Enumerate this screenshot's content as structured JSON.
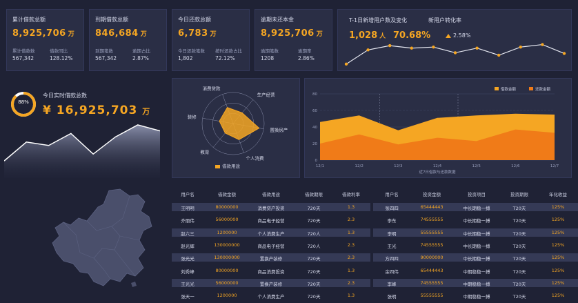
{
  "kpis": [
    {
      "title": "累计借款总额",
      "value": "8,925,706",
      "unit": "万",
      "sub": [
        {
          "label": "累计借款数",
          "value": "567,342"
        },
        {
          "label": "借款同比",
          "value": "128.12%"
        }
      ]
    },
    {
      "title": "到期借款总额",
      "value": "846,684",
      "unit": "万",
      "sub": [
        {
          "label": "到期笔数",
          "value": "567,342"
        },
        {
          "label": "逾期占比",
          "value": "2.87%"
        }
      ]
    },
    {
      "title": "今日还款总额",
      "value": "6,783",
      "unit": "万",
      "sub": [
        {
          "label": "今日还款笔数",
          "value": "1,802"
        },
        {
          "label": "按时还款占比",
          "value": "72.12%"
        }
      ]
    },
    {
      "title": "逾期未还本金",
      "value": "8,925,706",
      "unit": "万",
      "sub": [
        {
          "label": "逾期笔数",
          "value": "1208"
        },
        {
          "label": "逾期率",
          "value": "2.86%"
        }
      ]
    }
  ],
  "activity": {
    "title": "T-1日新增用户数及变化",
    "title2": "新用户转化率",
    "users": "1,028",
    "users_unit": "人",
    "rate": "70.68%",
    "change": "2.58%",
    "trend": [
      10,
      50,
      62,
      55,
      58,
      42,
      55,
      35,
      58,
      65,
      40
    ]
  },
  "today": {
    "label": "今日实时借款总数",
    "percent": "88",
    "percent_sign": "%",
    "currency": "¥",
    "amount": "16,925,703",
    "unit": "万",
    "trend": [
      20,
      42,
      38,
      52,
      28,
      48,
      62,
      55
    ]
  },
  "radar": {
    "axes": [
      "消费贷款",
      "生产经营",
      "置换房产",
      "个人消费",
      "教育",
      "装修"
    ],
    "values": [
      0.55,
      0.45,
      0.85,
      0.55,
      0.4,
      0.45
    ],
    "legend": "借款用途"
  },
  "chart_data": {
    "type": "area",
    "categories": [
      "12/1",
      "12/2",
      "12/3",
      "12/4",
      "12/5",
      "12/6",
      "12/7"
    ],
    "xlabel": "近7日借款与还款数据",
    "ylim": [
      0,
      80
    ],
    "yticks": [
      "0",
      "20",
      "40",
      "60",
      "80"
    ],
    "legend_position": "top-right",
    "series": [
      {
        "name": "借款金额",
        "values": [
          46,
          54,
          36,
          51,
          54,
          56,
          55
        ],
        "color": "#f5a623"
      },
      {
        "name": "还款金额",
        "values": [
          20,
          31,
          19,
          27,
          23,
          37,
          33
        ],
        "color": "#f07b18"
      }
    ]
  },
  "table_left": {
    "headers": [
      "用户名",
      "借款金额",
      "借款用途",
      "借款期限",
      "借款利率"
    ],
    "rows": [
      [
        "王明明",
        "80000000",
        "消费贷产投资",
        "720天",
        "1.3"
      ],
      [
        "齐丽伟",
        "56000000",
        "商品电子经营",
        "720天",
        "2.3"
      ],
      [
        "赵六三",
        "1200000",
        "个人消费生产",
        "720人",
        "1.3"
      ],
      [
        "赵光辉",
        "130000000",
        "商品电子经营",
        "720人",
        "2.3"
      ],
      [
        "张光光",
        "130000000",
        "置换产装修",
        "720天",
        "2.3"
      ],
      [
        "刘秀峰",
        "80000000",
        "商品消费投资",
        "720天",
        "1.3"
      ],
      [
        "王光光",
        "56000000",
        "置换产装修",
        "720天",
        "2.3"
      ],
      [
        "张天一",
        "1200000",
        "个人消费生产",
        "720天",
        "1.3"
      ]
    ]
  },
  "table_right": {
    "headers": [
      "用户名",
      "投资金额",
      "投资项目",
      "投资期限",
      "年化收益"
    ],
    "rows": [
      [
        "张四四",
        "65444443",
        "中长期稳一搏",
        "T20天",
        "125%"
      ],
      [
        "李东",
        "74555555",
        "中长期稳一搏",
        "T20天",
        "125%"
      ],
      [
        "李明",
        "55555555",
        "中长期稳一搏",
        "T20天",
        "125%"
      ],
      [
        "王光",
        "74555555",
        "中长期稳一搏",
        "T20天",
        "125%"
      ],
      [
        "方四四",
        "90000000",
        "中长期稳一搏",
        "T20天",
        "125%"
      ],
      [
        "余四伟",
        "65444443",
        "中期稳稳一搏",
        "T20天",
        "125%"
      ],
      [
        "李峰",
        "74555555",
        "中期稳稳一搏",
        "T20天",
        "125%"
      ],
      [
        "张明",
        "55555555",
        "中期稳稳一搏",
        "T20天",
        "125%"
      ]
    ]
  }
}
